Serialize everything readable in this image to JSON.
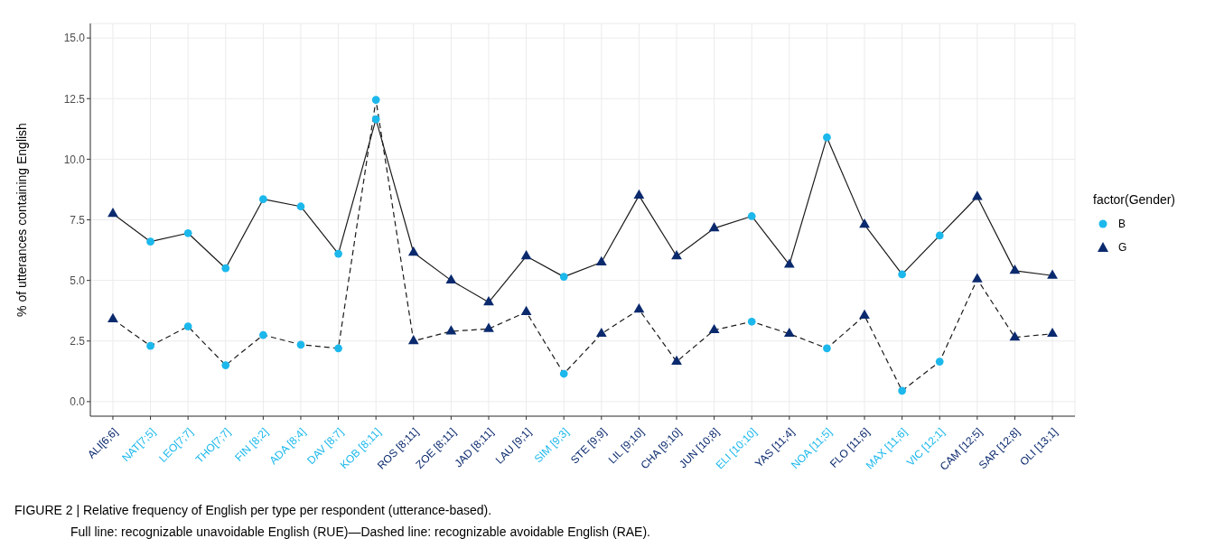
{
  "chart_data": {
    "type": "line",
    "ylabel": "% of utterances containing English",
    "legend_title": "factor(Gender)",
    "categories": [
      "ALI[6;6]",
      "NAT[7;5]",
      "LEO[7;7]",
      "THO[7;7]",
      "FIN [8;2]",
      "ADA [8;4]",
      "DAV [8;7]",
      "KOB [8;11]",
      "ROS [8;11]",
      "ZOE [8;11]",
      "JAD [8;11]",
      "LAU [9;1]",
      "SIM [9;3]",
      "STE [9;9]",
      "LIL [9;10]",
      "CHA [9;10]",
      "JUN [10;8]",
      "ELI [10;10]",
      "YAS [11;4]",
      "NOA [11;5]",
      "FLO [11;6]",
      "MAX [11;6]",
      "VIC [12;1]",
      "CAM [12;5]",
      "SAR [12;8]",
      "OLI [13;1]"
    ],
    "series": [
      {
        "color": "#1a1a1a",
        "line_style": "solid",
        "marker": "none",
        "values": [
          7.75,
          6.6,
          6.95,
          5.5,
          8.35,
          8.05,
          6.1,
          11.65,
          6.15,
          5.0,
          4.1,
          6.0,
          5.15,
          5.75,
          8.5,
          6.0,
          7.15,
          7.65,
          5.65,
          10.9,
          7.3,
          5.25,
          6.85,
          8.45,
          5.4,
          5.2
        ]
      },
      {
        "color": "#1a1a1a",
        "line_style": "dashed",
        "marker": "none",
        "values": [
          3.4,
          2.3,
          3.1,
          1.5,
          2.75,
          2.35,
          2.2,
          12.45,
          2.5,
          2.9,
          3.0,
          3.7,
          1.15,
          2.8,
          3.8,
          1.65,
          2.95,
          3.3,
          2.8,
          2.2,
          3.55,
          0.45,
          1.65,
          5.05,
          2.65,
          2.8
        ]
      },
      {
        "type": "scatter",
        "name": "B",
        "color": "#1cb8ec",
        "marker": "circle",
        "x": [
          "NAT[7;5]",
          "LEO[7;7]",
          "THO[7;7]",
          "FIN [8;2]",
          "ADA [8;4]",
          "DAV [8;7]",
          "KOB [8;11]",
          "SIM [9;3]",
          "ELI [10;10]",
          "NOA [11;5]",
          "MAX [11;6]",
          "VIC [12;1]",
          "NAT[7;5]",
          "LEO[7;7]",
          "THO[7;7]",
          "FIN [8;2]",
          "ADA [8;4]",
          "DAV [8;7]",
          "KOB [8;11]",
          "SIM [9;3]",
          "ELI [10;10]",
          "NOA [11;5]",
          "MAX [11;6]",
          "VIC [12;1]"
        ],
        "values": [
          6.6,
          6.95,
          5.5,
          8.35,
          8.05,
          6.1,
          11.65,
          5.15,
          7.65,
          10.9,
          5.25,
          6.85,
          2.3,
          3.1,
          1.5,
          2.75,
          2.35,
          2.2,
          12.45,
          1.15,
          3.3,
          2.2,
          0.45,
          1.65
        ]
      },
      {
        "type": "scatter",
        "name": "G",
        "color": "#0b2a6e",
        "marker": "triangle",
        "x": [
          "ALI[6;6]",
          "ROS [8;11]",
          "ZOE [8;11]",
          "JAD [8;11]",
          "LAU [9;1]",
          "STE [9;9]",
          "LIL [9;10]",
          "CHA [9;10]",
          "JUN [10;8]",
          "YAS [11;4]",
          "FLO [11;6]",
          "CAM [12;5]",
          "SAR [12;8]",
          "OLI [13;1]",
          "ALI[6;6]",
          "ROS [8;11]",
          "ZOE [8;11]",
          "JAD [8;11]",
          "LAU [9;1]",
          "STE [9;9]",
          "LIL [9;10]",
          "CHA [9;10]",
          "JUN [10;8]",
          "YAS [11;4]",
          "FLO [11;6]",
          "CAM [12;5]",
          "SAR [12;8]",
          "OLI [13;1]"
        ],
        "values": [
          7.75,
          6.15,
          5.0,
          4.1,
          6.0,
          5.75,
          8.5,
          6.0,
          7.15,
          5.65,
          7.3,
          8.45,
          5.4,
          5.2,
          3.4,
          2.5,
          2.9,
          3.0,
          3.7,
          2.8,
          3.8,
          1.65,
          2.95,
          2.8,
          3.55,
          5.05,
          2.65,
          2.8
        ]
      }
    ],
    "ylim": [
      -0.6,
      15.6
    ],
    "yticks": [
      {
        "value": 0,
        "label": "0.0"
      },
      {
        "value": 2.5,
        "label": "2.5"
      },
      {
        "value": 5,
        "label": "5.0"
      },
      {
        "value": 7.5,
        "label": "7.5"
      },
      {
        "value": 10,
        "label": "10.0"
      },
      {
        "value": 12.5,
        "label": "12.5"
      },
      {
        "value": 15,
        "label": "15.0"
      }
    ],
    "grid": true,
    "legend": "right",
    "annotations": [
      "FIGURE 2 | Relative frequency of English per type per respondent (utterance-based).",
      "Full line: recognizable unavoidable English (RUE)—Dashed line: recognizable avoidable English (RAE)."
    ]
  }
}
